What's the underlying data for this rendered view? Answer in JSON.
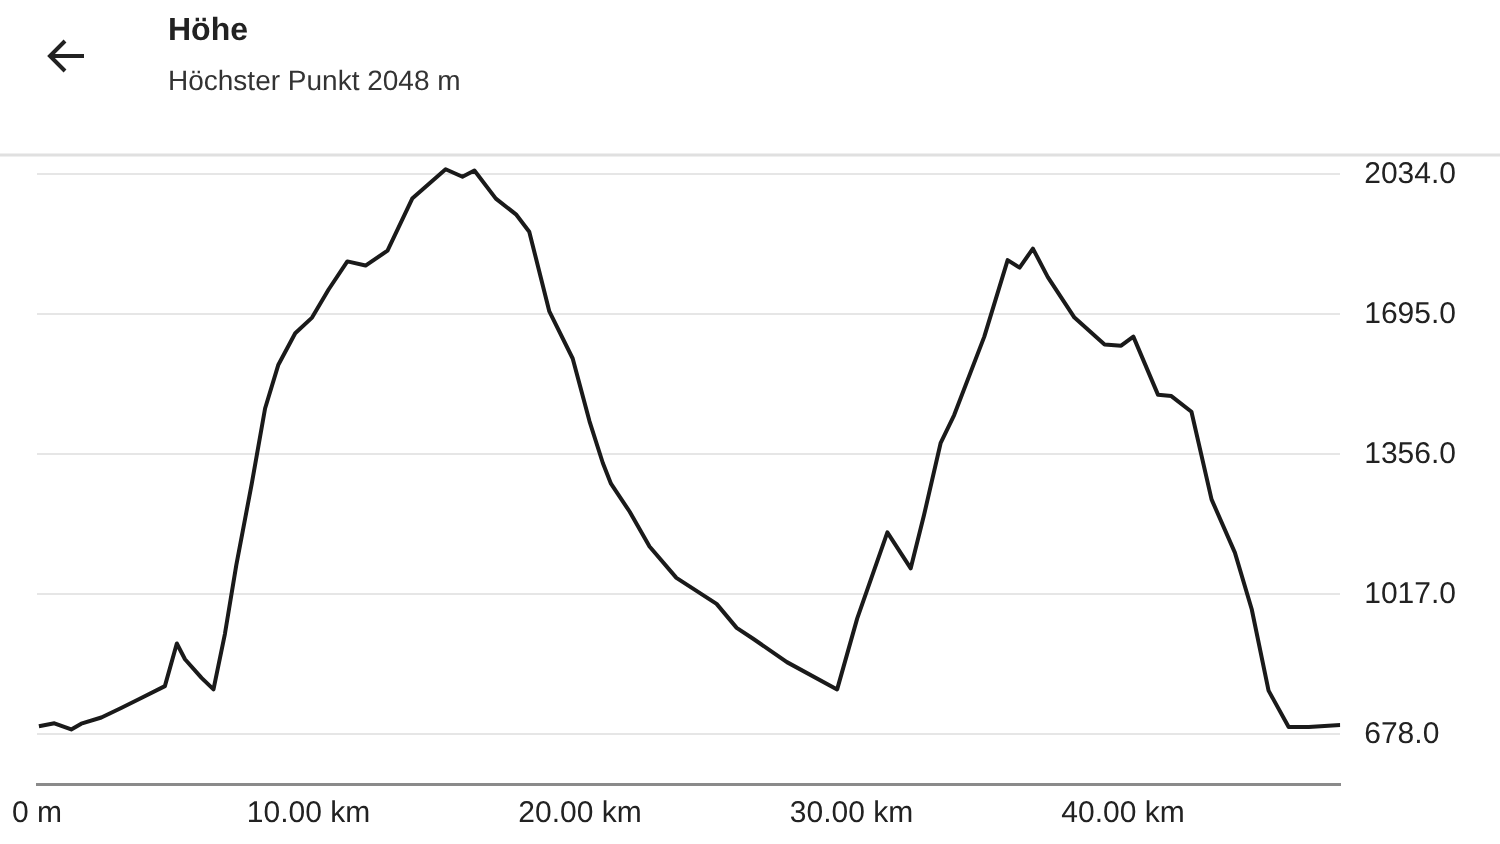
{
  "chart_data": {
    "type": "line",
    "title": "Höhe",
    "subtitle": "Höchster Punkt 2048 m",
    "x": [
      0.07,
      0.64,
      1.26,
      1.63,
      2.37,
      3.1,
      3.84,
      4.71,
      5.15,
      5.45,
      6.06,
      6.5,
      6.92,
      7.34,
      7.91,
      8.4,
      8.89,
      9.51,
      10.13,
      10.74,
      11.43,
      12.1,
      12.91,
      13.82,
      15.05,
      15.67,
      16.11,
      16.9,
      17.64,
      18.13,
      18.87,
      19.73,
      20.35,
      20.84,
      21.14,
      21.83,
      22.56,
      23.55,
      25.03,
      25.77,
      26.39,
      27.62,
      29.47,
      30.21,
      31.32,
      32.18,
      32.67,
      33.28,
      33.78,
      34.89,
      35.75,
      36.19,
      36.68,
      37.23,
      38.21,
      39.32,
      39.93,
      40.38,
      41.29,
      41.78,
      42.52,
      43.26,
      44.12,
      44.74,
      45.36,
      46.1,
      46.84,
      48.0
    ],
    "series": [
      {
        "color": "#1a1a1a",
        "values": [
          698,
          705,
          690,
          704,
          719,
          742,
          766,
          795,
          898,
          860,
          815,
          787,
          921,
          1088,
          1285,
          1467,
          1573,
          1649,
          1687,
          1755,
          1823,
          1813,
          1849,
          1975,
          2046,
          2028,
          2043,
          1975,
          1937,
          1895,
          1702,
          1588,
          1436,
          1335,
          1285,
          1217,
          1133,
          1057,
          994,
          936,
          909,
          853,
          787,
          959,
          1167,
          1080,
          1209,
          1383,
          1451,
          1641,
          1826,
          1808,
          1854,
          1785,
          1687,
          1622,
          1619,
          1641,
          1500,
          1497,
          1459,
          1247,
          1118,
          981,
          784,
          696,
          696,
          701
        ]
      }
    ],
    "xlim": [
      0,
      48
    ],
    "xticks": [
      {
        "value": 0,
        "label": "0 m"
      },
      {
        "value": 10,
        "label": "10.00 km"
      },
      {
        "value": 20,
        "label": "20.00 km"
      },
      {
        "value": 30,
        "label": "30.00 km"
      },
      {
        "value": 40,
        "label": "40.00 km"
      }
    ],
    "ylim": [
      558,
      2083
    ],
    "yticks": [
      {
        "value": 678,
        "label": "678.0"
      },
      {
        "value": 1017,
        "label": "1017.0"
      },
      {
        "value": 1356,
        "label": "1356.0"
      },
      {
        "value": 1695,
        "label": "1695.0"
      },
      {
        "value": 2034,
        "label": "2034.0"
      }
    ],
    "grid": "y",
    "legend": false,
    "marker": "none",
    "line_style": "solid"
  }
}
